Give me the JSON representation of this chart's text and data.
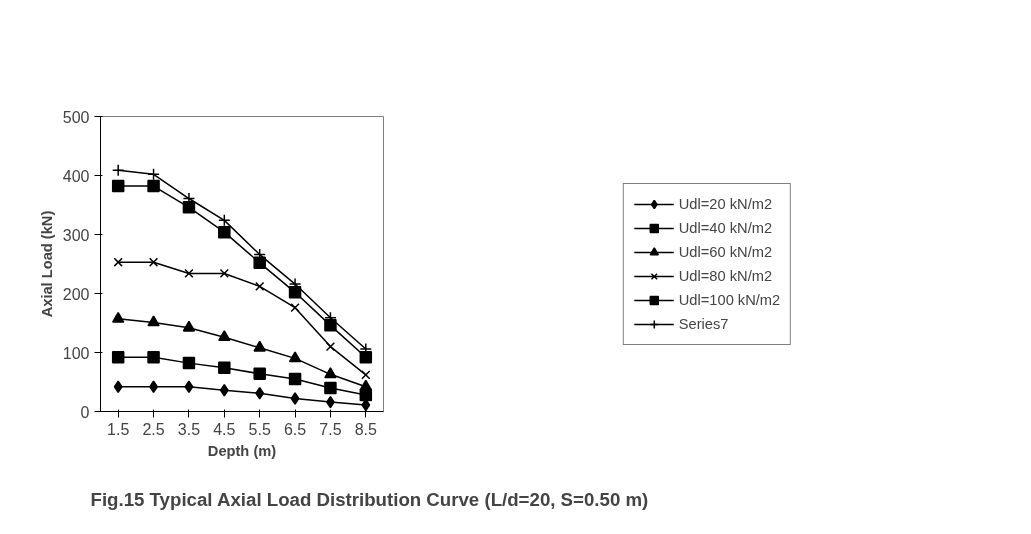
{
  "chart_data": {
    "type": "line",
    "title": "Fig.15 Typical Axial Load Distribution Curve (L/d=20, S=0.50 m)",
    "xlabel": "Depth (m)",
    "ylabel": "Axial Load (kN)",
    "categories": [
      "1.5",
      "2.5",
      "3.5",
      "4.5",
      "5.5",
      "6.5",
      "7.5",
      "8.5"
    ],
    "ylim": [
      0,
      500
    ],
    "yticks": [
      0,
      100,
      200,
      300,
      400,
      500
    ],
    "grid": false,
    "legend": "right",
    "line_style": "solid",
    "series": [
      {
        "name": "Udl=20 kN/m2",
        "color": "#000000",
        "marker": "diamond",
        "values": [
          42,
          42,
          42,
          36,
          31,
          22,
          16,
          11
        ]
      },
      {
        "name": "Udl=40 kN/m2",
        "color": "#000000",
        "marker": "square",
        "values": [
          92,
          92,
          82,
          74,
          64,
          55,
          40,
          28
        ]
      },
      {
        "name": "Udl=60 kN/m2",
        "color": "#000000",
        "marker": "triangle",
        "values": [
          157,
          151,
          142,
          126,
          108,
          90,
          63,
          42
        ]
      },
      {
        "name": "Udl=80 kN/m2",
        "color": "#000000",
        "marker": "x",
        "values": [
          253,
          253,
          234,
          234,
          212,
          176,
          110,
          62
        ]
      },
      {
        "name": "Udl=100 kN/m2",
        "color": "#000000",
        "marker": "square",
        "values": [
          382,
          382,
          346,
          304,
          252,
          202,
          146,
          92
        ]
      },
      {
        "name": "Series7",
        "color": "#000000",
        "marker": "cross",
        "values": [
          409,
          402,
          361,
          324,
          266,
          216,
          159,
          106
        ]
      }
    ]
  }
}
